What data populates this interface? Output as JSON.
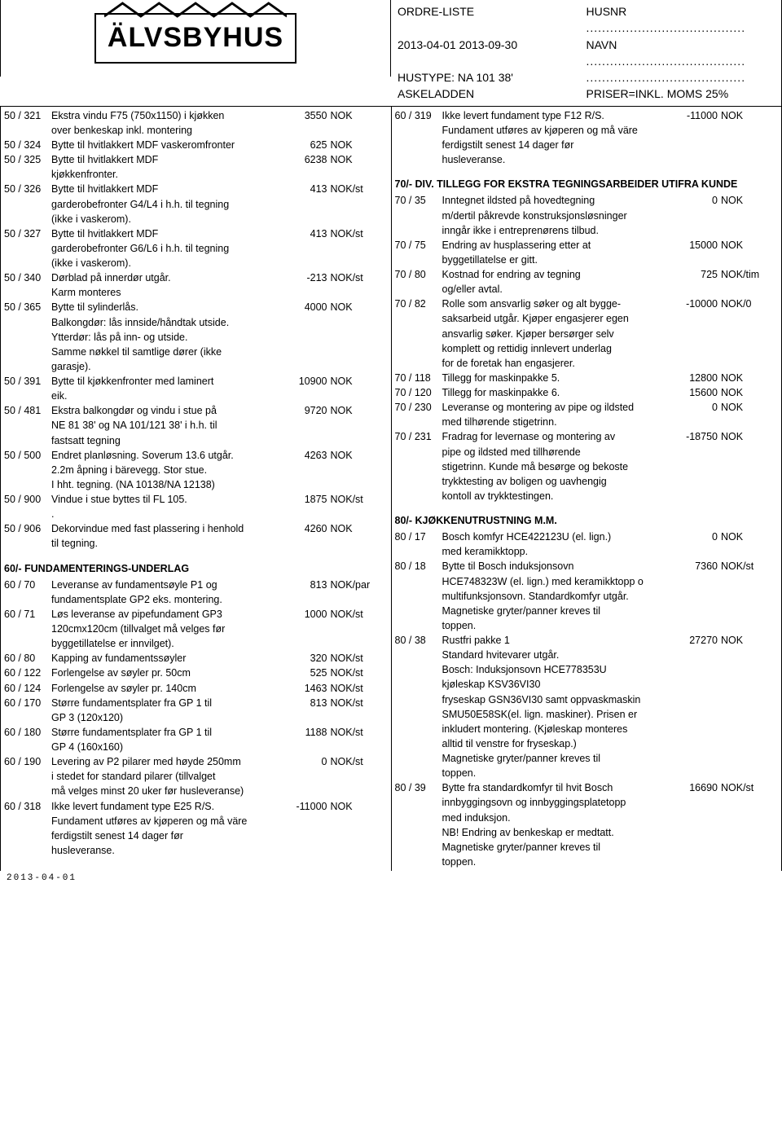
{
  "header": {
    "logo_text": "ÄLVSBYHUS",
    "title": "ORDRE-LISTE",
    "date_range": "2013-04-01 2013-09-30",
    "hustype": "HUSTYPE: NA 101 38'",
    "model": "ASKELADDEN",
    "husnr_label": "HUSNR",
    "navn_label": "NAVN",
    "price_note": "PRISER=INKL. MOMS 25%"
  },
  "footer_date": "2013-04-01",
  "left": [
    {
      "code": "50 / 321",
      "desc": "Ekstra vindu F75 (750x1150) i kjøkken",
      "price": "3550",
      "unit": "NOK"
    },
    {
      "code": "",
      "desc": "over benkeskap inkl. montering",
      "price": "",
      "unit": ""
    },
    {
      "code": "50 / 324",
      "desc": "Bytte til hvitlakkert MDF vaskeromfronter",
      "price": "625",
      "unit": "NOK"
    },
    {
      "code": "50 / 325",
      "desc": "Bytte til hvitlakkert MDF",
      "price": "6238",
      "unit": "NOK"
    },
    {
      "code": "",
      "desc": "kjøkkenfronter.",
      "price": "",
      "unit": ""
    },
    {
      "code": "50 / 326",
      "desc": "Bytte til hvitlakkert MDF",
      "price": "413",
      "unit": "NOK/st"
    },
    {
      "code": "",
      "desc": "garderobefronter G4/L4 i h.h. til tegning",
      "price": "",
      "unit": ""
    },
    {
      "code": "",
      "desc": "(ikke i vaskerom).",
      "price": "",
      "unit": ""
    },
    {
      "code": "50 / 327",
      "desc": "Bytte til hvitlakkert MDF",
      "price": "413",
      "unit": "NOK/st"
    },
    {
      "code": "",
      "desc": "garderobefronter G6/L6 i h.h. til tegning",
      "price": "",
      "unit": ""
    },
    {
      "code": "",
      "desc": "(ikke i vaskerom).",
      "price": "",
      "unit": ""
    },
    {
      "code": "50 / 340",
      "desc": "Dørblad på innerdør utgår.",
      "price": "-213",
      "unit": "NOK/st"
    },
    {
      "code": "",
      "desc": "Karm monteres",
      "price": "",
      "unit": ""
    },
    {
      "code": "50 / 365",
      "desc": "Bytte til sylinderlås.",
      "price": "4000",
      "unit": "NOK"
    },
    {
      "code": "",
      "desc": "Balkongdør: lås innside/håndtak utside.",
      "price": "",
      "unit": ""
    },
    {
      "code": "",
      "desc": "Ytterdør: lås på inn- og utside.",
      "price": "",
      "unit": ""
    },
    {
      "code": "",
      "desc": "Samme nøkkel til samtlige dører (ikke",
      "price": "",
      "unit": ""
    },
    {
      "code": "",
      "desc": "garasje).",
      "price": "",
      "unit": ""
    },
    {
      "code": "50 / 391",
      "desc": "Bytte til kjøkkenfronter med laminert",
      "price": "10900",
      "unit": "NOK"
    },
    {
      "code": "",
      "desc": "eik.",
      "price": "",
      "unit": ""
    },
    {
      "code": "50 / 481",
      "desc": "Ekstra balkongdør og vindu i stue på",
      "price": "9720",
      "unit": "NOK"
    },
    {
      "code": "",
      "desc": "NE 81 38' og NA 101/121 38' i h.h. til",
      "price": "",
      "unit": ""
    },
    {
      "code": "",
      "desc": "fastsatt tegning",
      "price": "",
      "unit": ""
    },
    {
      "code": "50 / 500",
      "desc": "Endret planløsning. Soverum 13.6 utgår.",
      "price": "4263",
      "unit": "NOK"
    },
    {
      "code": "",
      "desc": "2.2m åpning i bärevegg. Stor stue.",
      "price": "",
      "unit": ""
    },
    {
      "code": "",
      "desc": "I hht. tegning. (NA 10138/NA 12138)",
      "price": "",
      "unit": ""
    },
    {
      "code": "50 / 900",
      "desc": "Vindue i stue byttes til FL 105.",
      "price": "1875",
      "unit": "NOK/st"
    },
    {
      "code": "",
      "desc": ".",
      "price": "",
      "unit": ""
    },
    {
      "code": "50 / 906",
      "desc": "Dekorvindue med fast plassering i henhold",
      "price": "4260",
      "unit": "NOK"
    },
    {
      "code": "",
      "desc": "til tegning.",
      "price": "",
      "unit": ""
    }
  ],
  "left_section2_title": "60/- FUNDAMENTERINGS-UNDERLAG",
  "left2": [
    {
      "code": "60 / 70",
      "desc": "Leveranse av fundamentsøyle P1 og",
      "price": "813",
      "unit": "NOK/par"
    },
    {
      "code": "",
      "desc": "fundamentsplate GP2 eks. montering.",
      "price": "",
      "unit": ""
    },
    {
      "code": "60 / 71",
      "desc": "Løs leveranse av pipefundament GP3",
      "price": "1000",
      "unit": "NOK/st"
    },
    {
      "code": "",
      "desc": "120cmx120cm (tillvalget må velges før",
      "price": "",
      "unit": ""
    },
    {
      "code": "",
      "desc": "byggetillatelse er innvilget).",
      "price": "",
      "unit": ""
    },
    {
      "code": "60 / 80",
      "desc": "Kapping av fundamentssøyler",
      "price": "320",
      "unit": "NOK/st"
    },
    {
      "code": "60 / 122",
      "desc": "Forlengelse av søyler pr. 50cm",
      "price": "525",
      "unit": "NOK/st"
    },
    {
      "code": "60 / 124",
      "desc": "Forlengelse av søyler pr. 140cm",
      "price": "1463",
      "unit": "NOK/st"
    },
    {
      "code": "60 / 170",
      "desc": "Større fundamentsplater fra GP 1 til",
      "price": "813",
      "unit": "NOK/st"
    },
    {
      "code": "",
      "desc": "GP 3 (120x120)",
      "price": "",
      "unit": ""
    },
    {
      "code": "60 / 180",
      "desc": "Større fundamentsplater fra GP 1 til",
      "price": "1188",
      "unit": "NOK/st"
    },
    {
      "code": "",
      "desc": "GP 4 (160x160)",
      "price": "",
      "unit": ""
    },
    {
      "code": "60 / 190",
      "desc": "Levering av P2 pilarer med høyde 250mm",
      "price": "0",
      "unit": "NOK/st"
    },
    {
      "code": "",
      "desc": "i stedet for standard pilarer (tillvalget",
      "price": "",
      "unit": ""
    },
    {
      "code": "",
      "desc": "må velges minst 20 uker før husleveranse)",
      "price": "",
      "unit": ""
    },
    {
      "code": "60 / 318",
      "desc": "Ikke levert fundament type E25 R/S.",
      "price": "-11000",
      "unit": "NOK"
    },
    {
      "code": "",
      "desc": "Fundament utføres av kjøperen og må väre",
      "price": "",
      "unit": ""
    },
    {
      "code": "",
      "desc": "ferdigstilt senest 14 dager før",
      "price": "",
      "unit": ""
    },
    {
      "code": "",
      "desc": "husleveranse.",
      "price": "",
      "unit": ""
    }
  ],
  "right": [
    {
      "code": "60 / 319",
      "desc": "Ikke levert fundament type F12 R/S.",
      "price": "-11000",
      "unit": "NOK"
    },
    {
      "code": "",
      "desc": "Fundament utføres av kjøperen og må väre",
      "price": "",
      "unit": ""
    },
    {
      "code": "",
      "desc": "ferdigstilt senest 14 dager før",
      "price": "",
      "unit": ""
    },
    {
      "code": "",
      "desc": "husleveranse.",
      "price": "",
      "unit": ""
    }
  ],
  "right_section2_title": "70/- DIV. TILLEGG FOR EKSTRA TEGNINGSARBEIDER UTIFRA KUNDE",
  "right2": [
    {
      "code": "70 / 35",
      "desc": "Inntegnet ildsted på hovedtegning",
      "price": "0",
      "unit": "NOK"
    },
    {
      "code": "",
      "desc": "m/dertil påkrevde konstruksjonsløsninger",
      "price": "",
      "unit": ""
    },
    {
      "code": "",
      "desc": "inngår ikke i entreprenørens tilbud.",
      "price": "",
      "unit": ""
    },
    {
      "code": "70 / 75",
      "desc": "Endring av husplassering etter at",
      "price": "15000",
      "unit": "NOK"
    },
    {
      "code": "",
      "desc": "byggetillatelse er gitt.",
      "price": "",
      "unit": ""
    },
    {
      "code": "70 / 80",
      "desc": "Kostnad for endring av tegning",
      "price": "725",
      "unit": "NOK/tim"
    },
    {
      "code": "",
      "desc": "og/eller avtal.",
      "price": "",
      "unit": ""
    },
    {
      "code": "70 / 82",
      "desc": "Rolle som ansvarlig søker og alt bygge-",
      "price": "-10000",
      "unit": "NOK/0"
    },
    {
      "code": "",
      "desc": "saksarbeid utgår. Kjøper engasjerer egen",
      "price": "",
      "unit": ""
    },
    {
      "code": "",
      "desc": "ansvarlig søker. Kjøper bersørger selv",
      "price": "",
      "unit": ""
    },
    {
      "code": "",
      "desc": "komplett og rettidig innlevert underlag",
      "price": "",
      "unit": ""
    },
    {
      "code": "",
      "desc": "for de foretak han engasjerer.",
      "price": "",
      "unit": ""
    },
    {
      "code": "70 / 118",
      "desc": "Tillegg for maskinpakke 5.",
      "price": "12800",
      "unit": "NOK"
    },
    {
      "code": "70 / 120",
      "desc": "Tillegg for maskinpakke 6.",
      "price": "15600",
      "unit": "NOK"
    },
    {
      "code": "70 / 230",
      "desc": "Leveranse og montering av pipe og ildsted",
      "price": "0",
      "unit": "NOK"
    },
    {
      "code": "",
      "desc": "med tilhørende stigetrinn.",
      "price": "",
      "unit": ""
    },
    {
      "code": "70 / 231",
      "desc": "Fradrag for levernase og montering av",
      "price": "-18750",
      "unit": "NOK"
    },
    {
      "code": "",
      "desc": "pipe og ildsted med tillhørende",
      "price": "",
      "unit": ""
    },
    {
      "code": "",
      "desc": "stigetrinn. Kunde må besørge og bekoste",
      "price": "",
      "unit": ""
    },
    {
      "code": "",
      "desc": "trykktesting av boligen og uavhengig",
      "price": "",
      "unit": ""
    },
    {
      "code": "",
      "desc": "kontoll av trykktestingen.",
      "price": "",
      "unit": ""
    }
  ],
  "right_section3_title": "80/- KJØKKENUTRUSTNING M.M.",
  "right3": [
    {
      "code": "80 / 17",
      "desc": "Bosch komfyr HCE422123U (el. lign.)",
      "price": "0",
      "unit": "NOK"
    },
    {
      "code": "",
      "desc": "med keramikktopp.",
      "price": "",
      "unit": ""
    },
    {
      "code": "80 / 18",
      "desc": "Bytte til Bosch induksjonsovn",
      "price": "7360",
      "unit": "NOK/st"
    },
    {
      "code": "",
      "desc": "HCE748323W (el. lign.) med keramikktopp o",
      "price": "",
      "unit": ""
    },
    {
      "code": "",
      "desc": "multifunksjonsovn. Standardkomfyr utgår.",
      "price": "",
      "unit": ""
    },
    {
      "code": "",
      "desc": "Magnetiske gryter/panner kreves til",
      "price": "",
      "unit": ""
    },
    {
      "code": "",
      "desc": "toppen.",
      "price": "",
      "unit": ""
    },
    {
      "code": "80 / 38",
      "desc": "Rustfri pakke 1",
      "price": "27270",
      "unit": "NOK"
    },
    {
      "code": "",
      "desc": "Standard hvitevarer utgår.",
      "price": "",
      "unit": ""
    },
    {
      "code": "",
      "desc": "Bosch: Induksjonsovn HCE778353U",
      "price": "",
      "unit": ""
    },
    {
      "code": "",
      "desc": "kjøleskap KSV36VI30",
      "price": "",
      "unit": ""
    },
    {
      "code": "",
      "desc": "fryseskap GSN36VI30 samt oppvaskmaskin",
      "price": "",
      "unit": ""
    },
    {
      "code": "",
      "desc": "SMU50E58SK(el. lign. maskiner). Prisen er",
      "price": "",
      "unit": ""
    },
    {
      "code": "",
      "desc": "inkludert montering. (Kjøleskap monteres",
      "price": "",
      "unit": ""
    },
    {
      "code": "",
      "desc": "alltid til venstre for fryseskap.)",
      "price": "",
      "unit": ""
    },
    {
      "code": "",
      "desc": "Magnetiske gryter/panner kreves til",
      "price": "",
      "unit": ""
    },
    {
      "code": "",
      "desc": "toppen.",
      "price": "",
      "unit": ""
    },
    {
      "code": "80 / 39",
      "desc": "Bytte fra standardkomfyr til hvit Bosch",
      "price": "16690",
      "unit": "NOK/st"
    },
    {
      "code": "",
      "desc": "innbyggingsovn og innbyggingsplatetopp",
      "price": "",
      "unit": ""
    },
    {
      "code": "",
      "desc": "med induksjon.",
      "price": "",
      "unit": ""
    },
    {
      "code": "",
      "desc": "NB! Endring av benkeskap er medtatt.",
      "price": "",
      "unit": ""
    },
    {
      "code": "",
      "desc": "Magnetiske gryter/panner kreves til",
      "price": "",
      "unit": ""
    },
    {
      "code": "",
      "desc": "toppen.",
      "price": "",
      "unit": ""
    }
  ]
}
